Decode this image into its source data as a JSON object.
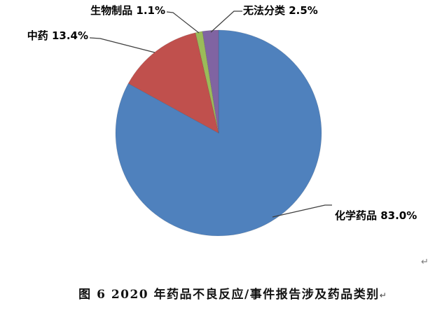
{
  "chart_data": {
    "type": "pie",
    "title": "图 6 2020 年药品不良反应/事件报告涉及药品类别",
    "start_angle_deg": 0,
    "direction": "clockwise",
    "legend_position": "none",
    "labels_style": "outside-with-leader-lines",
    "categories": [
      "化学药品",
      "中药",
      "生物制品",
      "无法分类"
    ],
    "values": [
      83.0,
      13.4,
      1.1,
      2.5
    ],
    "slices": [
      {
        "label": "化学药品",
        "value": 83.0,
        "display": "化学药品 83.0%",
        "color": "#4F81BD"
      },
      {
        "label": "中药",
        "value": 13.4,
        "display": "中药 13.4%",
        "color": "#C0504D"
      },
      {
        "label": "生物制品",
        "value": 1.1,
        "display": "生物制品 1.1%",
        "color": "#9BBB59"
      },
      {
        "label": "无法分类",
        "value": 2.5,
        "display": "无法分类 2.5%",
        "color": "#8064A2"
      }
    ]
  },
  "caption": {
    "text": "图 6 2020 年药品不良反应/事件报告涉及药品类别",
    "return_mark": "↵"
  },
  "page": {
    "background": "#ffffff",
    "leader_line_color": "#3f3f3f",
    "floating_return_mark": "↵"
  }
}
